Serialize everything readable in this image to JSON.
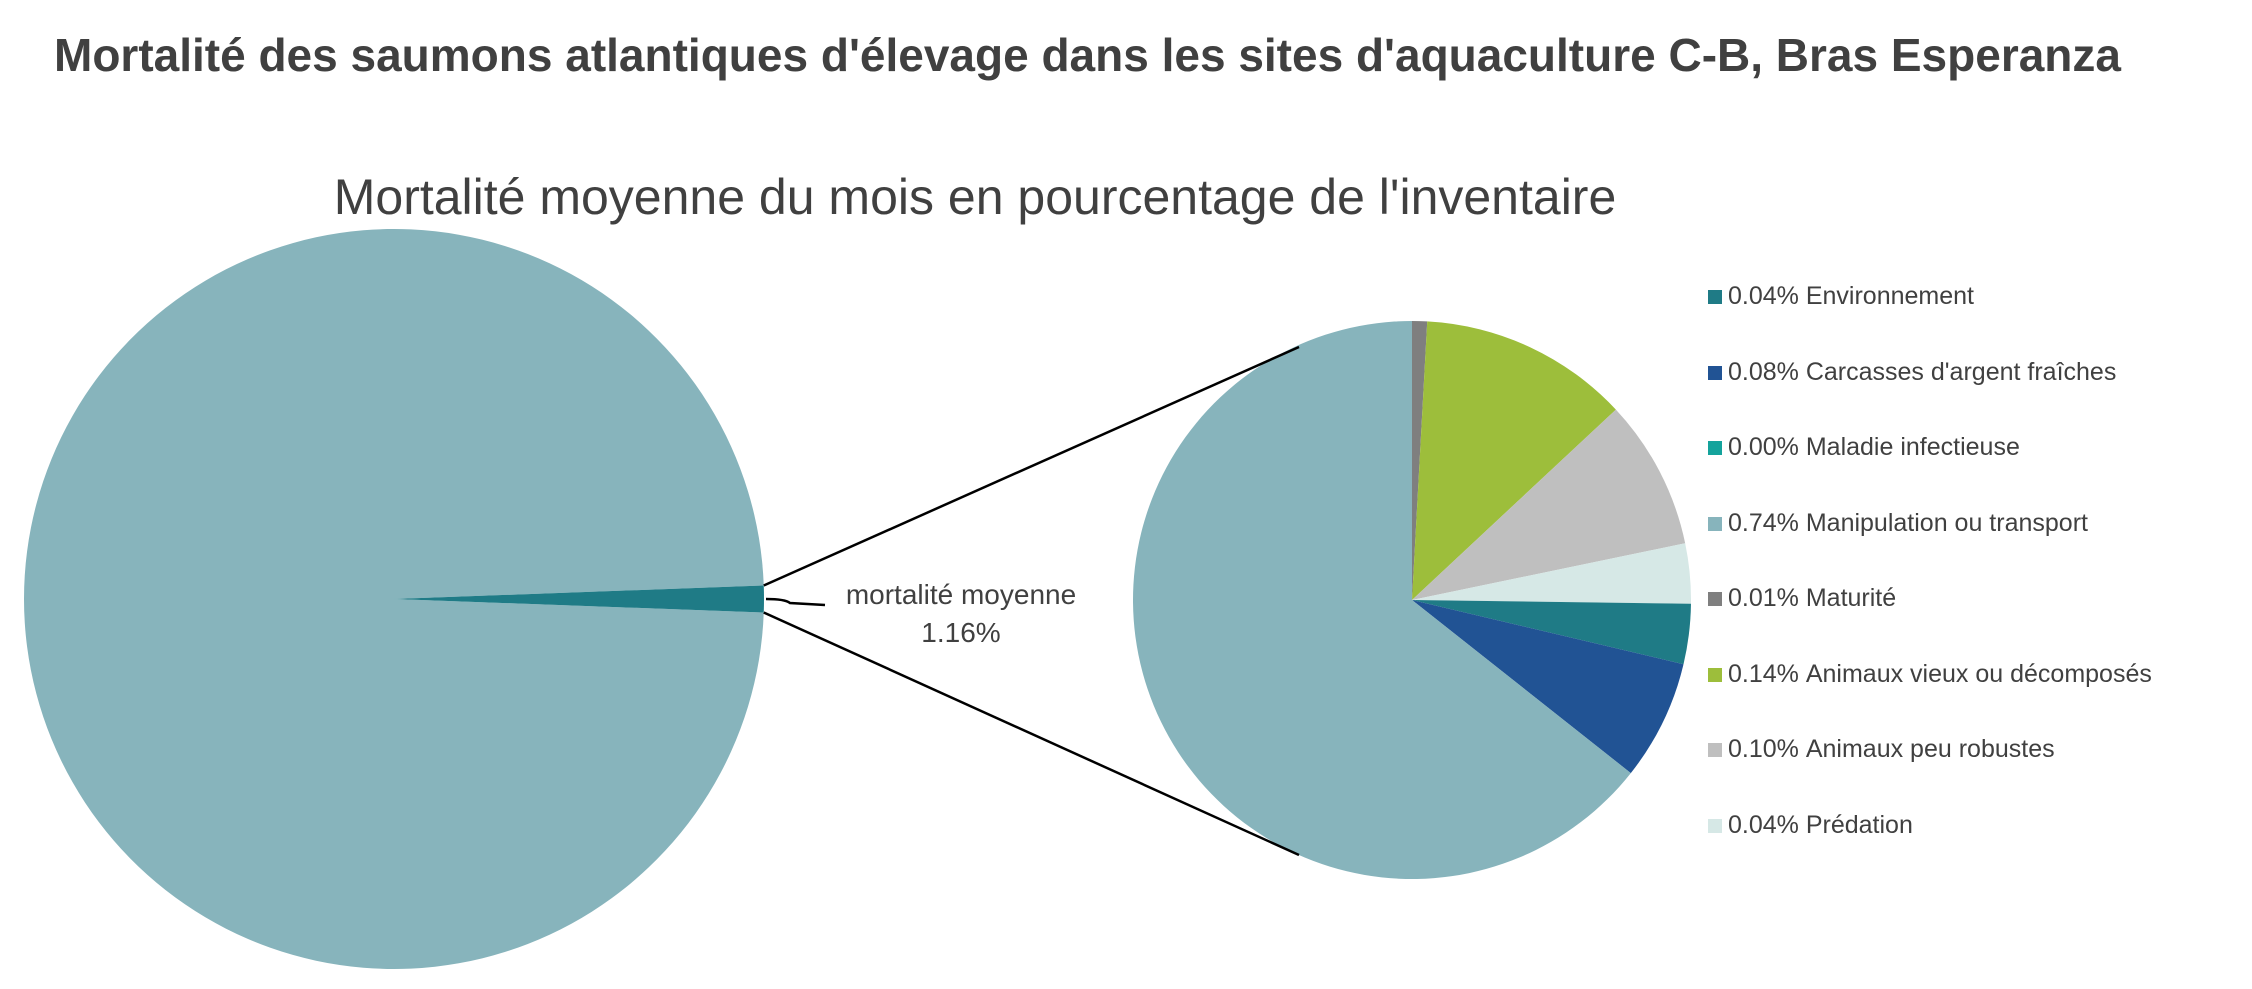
{
  "title": "Mortalité des saumons atlantiques d'élevage dans les sites d'aquaculture C-B, Bras Esperanza",
  "chart_data": {
    "type": "pie",
    "title": "Mortalité moyenne du mois en pourcentage de l'inventaire",
    "variant": "pie-of-pie",
    "main_pie": {
      "slices": [
        {
          "label": "mortalité moyenne",
          "value": 1.16,
          "value_label": "1.16%",
          "color": "#1f7b86"
        },
        {
          "label": "",
          "value": 98.84,
          "color": "#87b4bc"
        }
      ]
    },
    "secondary_pie": {
      "slices": [
        {
          "label": "Environnement",
          "value": 0.04,
          "value_label": "0.04%",
          "color": "#1f7b86"
        },
        {
          "label": "Carcasses d'argent fraîches",
          "value": 0.08,
          "value_label": "0.08%",
          "color": "#215394"
        },
        {
          "label": "Maladie infectieuse",
          "value": 0.0,
          "value_label": "0.00%",
          "color": "#14a39c"
        },
        {
          "label": "Manipulation ou transport",
          "value": 0.74,
          "value_label": "0.74%",
          "color": "#87b4bc"
        },
        {
          "label": "Maturité",
          "value": 0.01,
          "value_label": "0.01%",
          "color": "#7f7f7f"
        },
        {
          "label": "Animaux vieux ou décomposés",
          "value": 0.14,
          "value_label": "0.14%",
          "color": "#9dbe3b"
        },
        {
          "label": "Animaux peu robustes",
          "value": 0.1,
          "value_label": "0.10%",
          "color": "#bfbfbf"
        },
        {
          "label": "Prédation",
          "value": 0.04,
          "value_label": "0.04%",
          "color": "#d6e8e6"
        }
      ],
      "clockwise_order_from_top": [
        "Maturité",
        "Animaux vieux ou décomposés",
        "Animaux peu robustes",
        "Prédation",
        "Environnement",
        "Carcasses d'argent fraîches",
        "Maladie infectieuse",
        "Manipulation ou transport"
      ]
    },
    "legend_placement": "right"
  }
}
